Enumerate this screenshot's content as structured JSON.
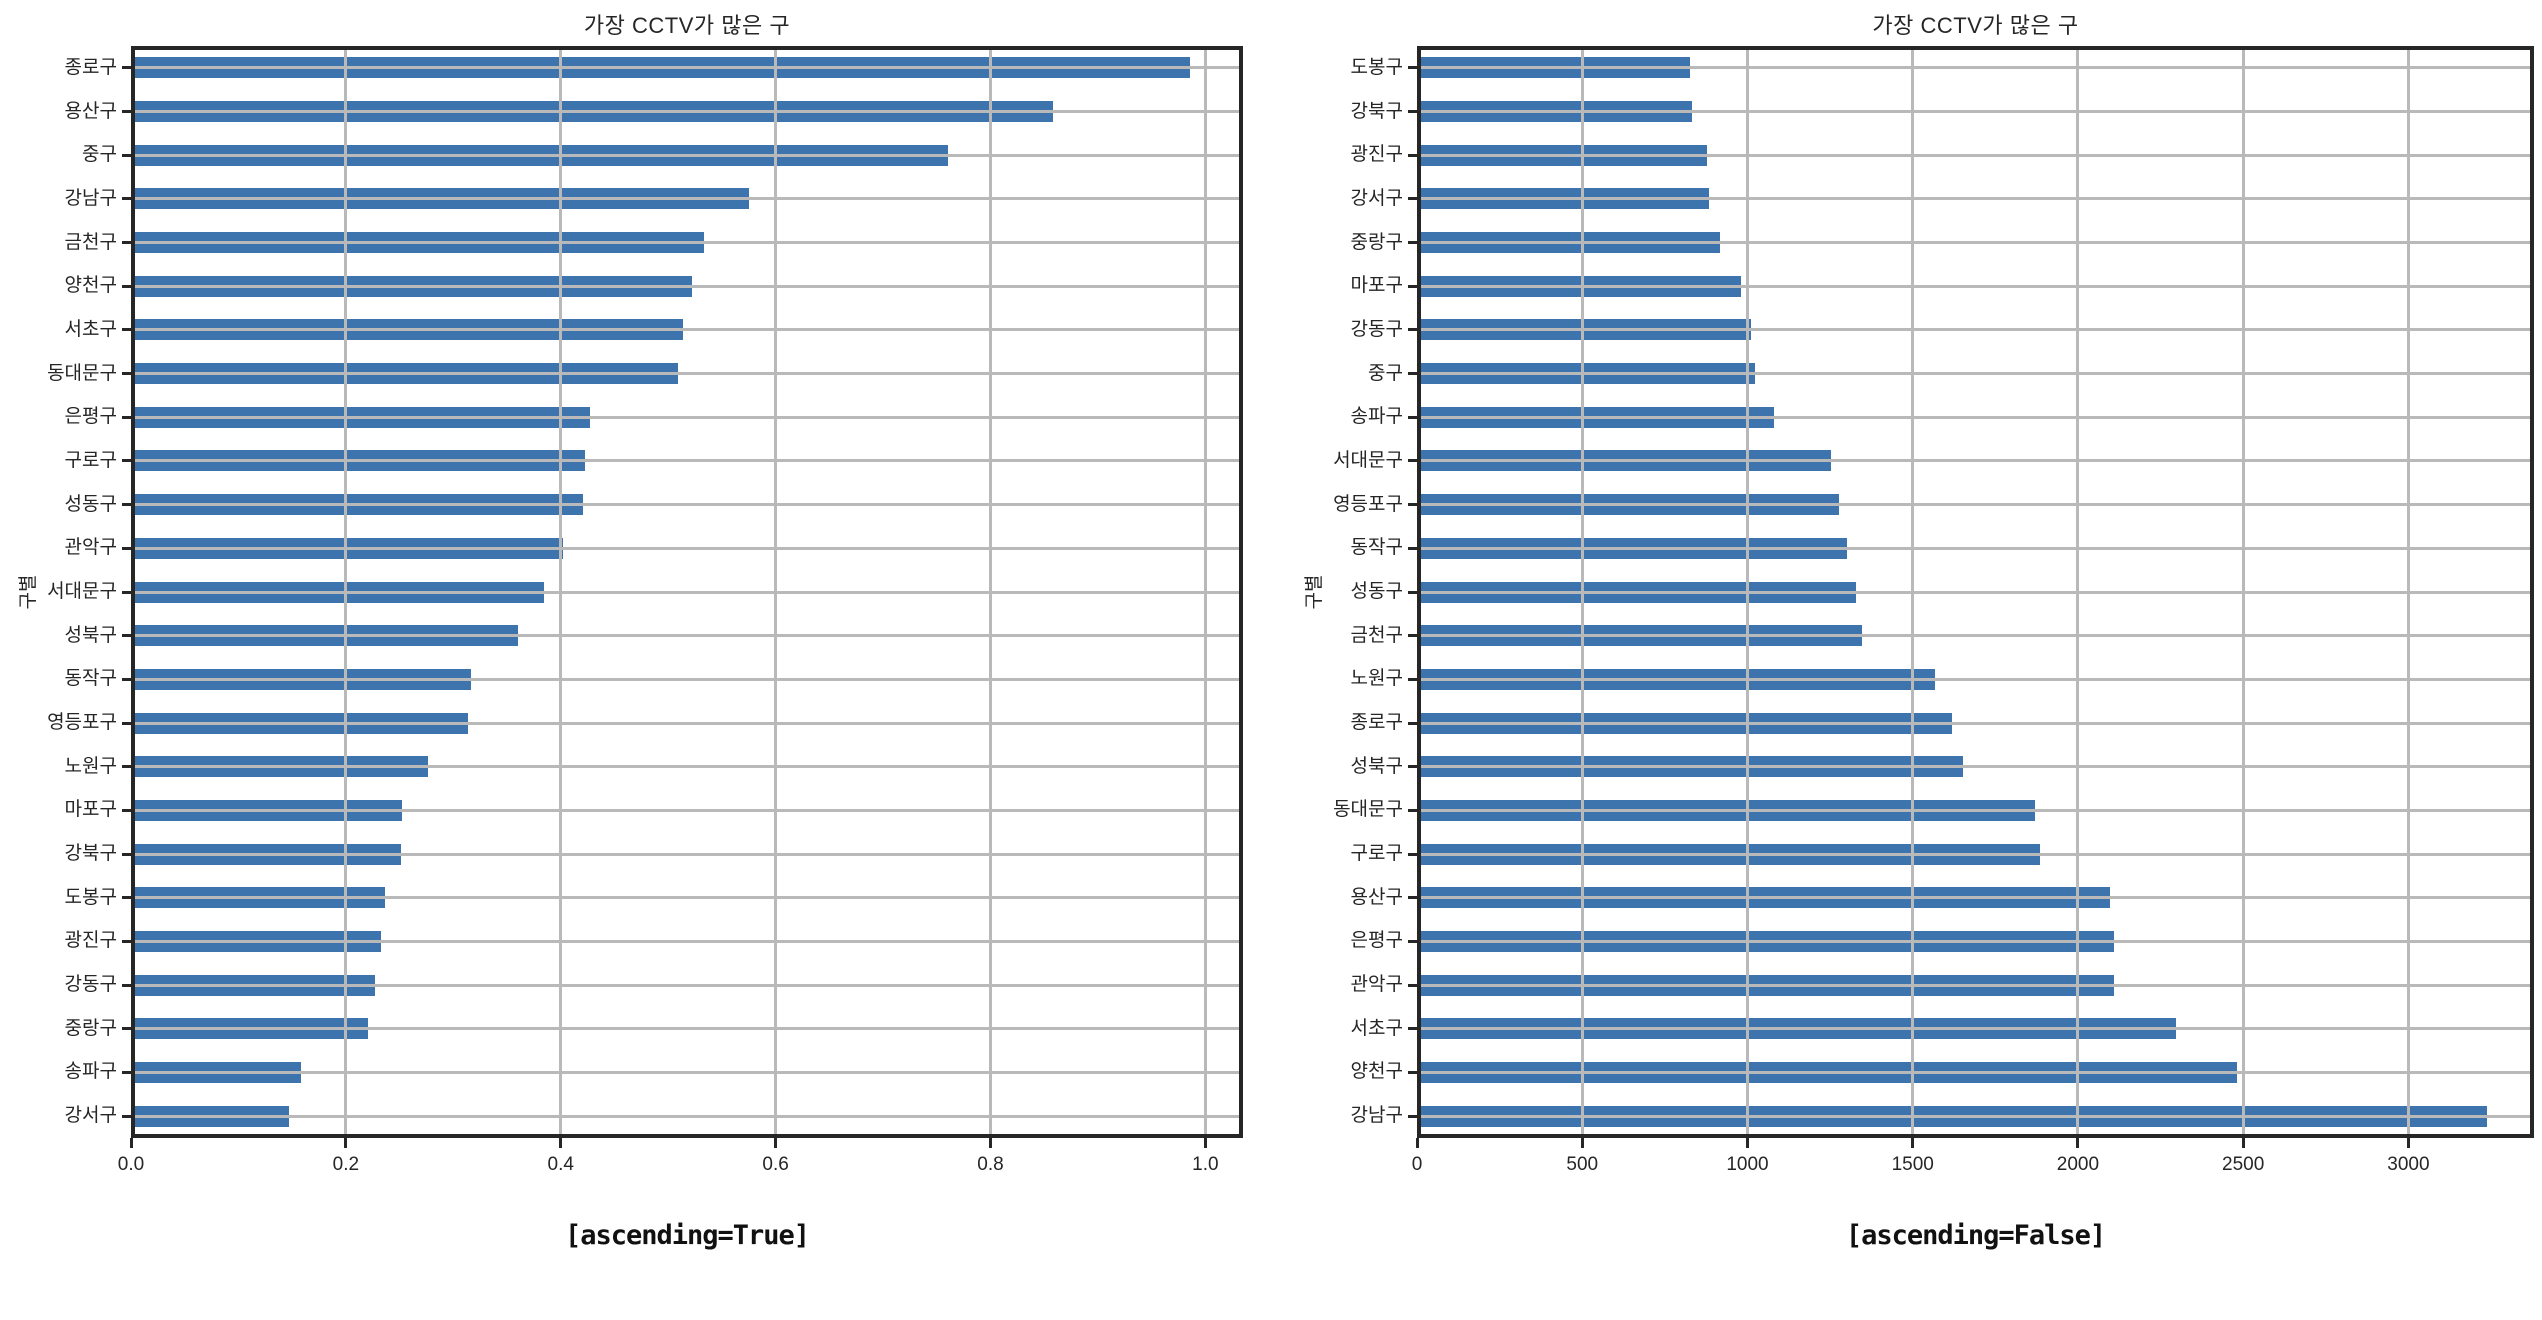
{
  "style": {
    "background": "#ffffff",
    "bar_color": "#3d74ae",
    "grid_color": "#b9b9b9",
    "spine_color": "#262626",
    "text_color": "#262626"
  },
  "chart_data": [
    {
      "type": "bar",
      "orientation": "horizontal",
      "title": "가장 CCTV가 많은 구",
      "ylabel": "구별",
      "xlabel": "",
      "caption": "[ascending=True]",
      "grid": true,
      "legend": false,
      "xlim": [
        0,
        1.035
      ],
      "xticks": [
        0,
        0.2,
        0.4,
        0.6,
        0.8,
        1.0
      ],
      "xtick_labels": [
        "0.0",
        "0.2",
        "0.4",
        "0.6",
        "0.8",
        "1.0"
      ],
      "categories_top_to_bottom": [
        "종로구",
        "용산구",
        "중구",
        "강남구",
        "금천구",
        "양천구",
        "서초구",
        "동대문구",
        "은평구",
        "구로구",
        "성동구",
        "관악구",
        "서대문구",
        "성북구",
        "동작구",
        "영등포구",
        "노원구",
        "마포구",
        "강북구",
        "도봉구",
        "광진구",
        "강동구",
        "중랑구",
        "송파구",
        "강서구"
      ],
      "values": [
        0.986,
        0.858,
        0.76,
        0.575,
        0.533,
        0.522,
        0.514,
        0.509,
        0.427,
        0.423,
        0.421,
        0.402,
        0.384,
        0.36,
        0.316,
        0.314,
        0.276,
        0.252,
        0.251,
        0.236,
        0.233,
        0.227,
        0.221,
        0.158,
        0.147
      ]
    },
    {
      "type": "bar",
      "orientation": "horizontal",
      "title": "가장 CCTV가 많은 구",
      "ylabel": "구별",
      "xlabel": "",
      "caption": "[ascending=False]",
      "grid": true,
      "legend": false,
      "xlim": [
        0,
        3380
      ],
      "xticks": [
        0,
        500,
        1000,
        1500,
        2000,
        2500,
        3000
      ],
      "xtick_labels": [
        "0",
        "500",
        "1000",
        "1500",
        "2000",
        "2500",
        "3000"
      ],
      "categories_top_to_bottom": [
        "도봉구",
        "강북구",
        "광진구",
        "강서구",
        "중랑구",
        "마포구",
        "강동구",
        "중구",
        "송파구",
        "서대문구",
        "영등포구",
        "동작구",
        "성동구",
        "금천구",
        "노원구",
        "종로구",
        "성북구",
        "동대문구",
        "구로구",
        "용산구",
        "은평구",
        "관악구",
        "서초구",
        "양천구",
        "강남구"
      ],
      "values": [
        825,
        831,
        878,
        884,
        916,
        980,
        1010,
        1023,
        1081,
        1254,
        1277,
        1302,
        1327,
        1348,
        1566,
        1619,
        1651,
        1870,
        1884,
        2096,
        2108,
        2109,
        2297,
        2482,
        3238
      ]
    }
  ]
}
